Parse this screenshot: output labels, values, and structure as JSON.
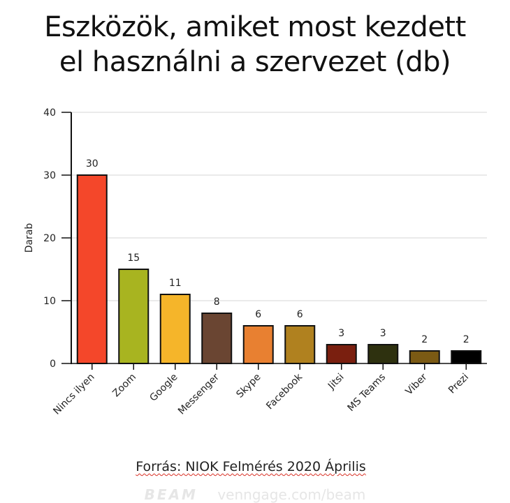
{
  "title_line1": "Eszközök, amiket most kezdett",
  "title_line2": "el használni a szervezet (db)",
  "source": "Forrás: NIOK Felmérés 2020 Április",
  "watermark_brand": "BEAM",
  "watermark_url": "venngage.com/beam",
  "chart_data": {
    "type": "bar",
    "categories": [
      "Nincs ilyen",
      "Zoom",
      "Google",
      "Messenger",
      "Skype",
      "Facebook",
      "Jitsi",
      "MS Teams",
      "Viber",
      "Prezi"
    ],
    "values": [
      30,
      15,
      11,
      8,
      6,
      6,
      3,
      3,
      2,
      2
    ],
    "colors": [
      "#f4472a",
      "#a8b420",
      "#f5b52a",
      "#6a4532",
      "#e88031",
      "#b0811f",
      "#7a1f0f",
      "#2e310f",
      "#7b5a14",
      "#000000"
    ],
    "ylabel": "Darab",
    "xlabel": "",
    "ylim": [
      0,
      40
    ],
    "yticks": [
      0,
      10,
      20,
      30,
      40
    ],
    "grid": true,
    "data_labels": true
  }
}
